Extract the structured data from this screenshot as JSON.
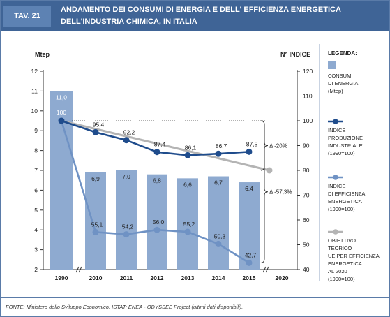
{
  "header": {
    "tav_label": "TAV. 21",
    "title": "ANDAMENTO DEI CONSUMI DI ENERGIA E DELL' EFFICIENZA ENERGETICA DELL'INDUSTRIA CHIMICA, IN ITALIA"
  },
  "legend": {
    "title": "LEGENDA:",
    "items": [
      {
        "label": "CONSUMI DI ENERGIA (Mtep)",
        "lines": [
          "CONSUMI",
          "DI ENERGIA",
          "(Mtep)"
        ],
        "kind": "bar",
        "color": "#8eaad0"
      },
      {
        "label": "INDICE PRODUZIONE INDUSTRIALE (1990=100)",
        "lines": [
          "INDICE",
          "PRODUZIONE",
          "INDUSTRIALE",
          "(1990=100)"
        ],
        "kind": "line",
        "color": "#1f4c8c"
      },
      {
        "label": "INDICE DI EFFICIENZA ENERGETICA (1990=100)",
        "lines": [
          "INDICE",
          "DI EFFICIENZA",
          "ENERGETICA",
          "(1990=100)"
        ],
        "kind": "line",
        "color": "#6f92c4"
      },
      {
        "label": "OBIETTIVO TEORICO UE PER EFFICIENZA ENERGETICA AL 2020 (1990=100)",
        "lines": [
          "OBIETTIVO",
          "TEORICO",
          "UE PER EFFICIENZA",
          "ENERGETICA",
          "AL 2020",
          "(1990=100)"
        ],
        "kind": "line",
        "color": "#b4b4b4"
      }
    ]
  },
  "source": "FONTE: Ministero dello Sviluppo Economico; ISTAT; ENEA - ODYSSEE Project (ultimi dati disponibili).",
  "chart_data": {
    "type": "bar",
    "categories": [
      "1990",
      "2010",
      "2011",
      "2012",
      "2013",
      "2014",
      "2015",
      "2020"
    ],
    "y_left": {
      "label": "Mtep",
      "range": [
        2,
        12
      ],
      "ticks": [
        2,
        3,
        4,
        5,
        6,
        7,
        8,
        9,
        10,
        11,
        12
      ]
    },
    "y_right": {
      "label": "N° INDICE",
      "range": [
        40,
        120
      ],
      "ticks": [
        40,
        50,
        60,
        70,
        80,
        90,
        100,
        110,
        120
      ]
    },
    "bars": {
      "name": "CONSUMI DI ENERGIA (Mtep)",
      "values": [
        11.0,
        6.9,
        7.0,
        6.8,
        6.6,
        6.7,
        6.4,
        null
      ],
      "labels": [
        "11,0",
        "6,9",
        "7,0",
        "6,8",
        "6,6",
        "6,7",
        "6,4",
        ""
      ]
    },
    "series": [
      {
        "name": "INDICE PRODUZIONE INDUSTRIALE (1990=100)",
        "axis": "right",
        "values": [
          100,
          95.4,
          92.2,
          87.4,
          86.1,
          86.7,
          87.5,
          null
        ],
        "labels": [
          "100",
          "95,4",
          "92,2",
          "87,4",
          "86,1",
          "86,7",
          "87,5",
          ""
        ],
        "color": "#1f4c8c"
      },
      {
        "name": "INDICE DI EFFICIENZA ENERGETICA (1990=100)",
        "axis": "right",
        "values": [
          100,
          55.1,
          54.2,
          56.0,
          55.2,
          50.3,
          42.7,
          null
        ],
        "labels": [
          "",
          "55,1",
          "54,2",
          "56,0",
          "55,2",
          "50,3",
          "42,7",
          ""
        ],
        "color": "#6f92c4"
      },
      {
        "name": "OBIETTIVO TEORICO UE PER EFFICIENZA ENERGETICA AL 2020 (1990=100)",
        "axis": "right",
        "values": [
          100,
          null,
          null,
          null,
          null,
          null,
          null,
          80
        ],
        "labels": [
          "",
          "",
          "",
          "",
          "",
          "",
          "",
          ""
        ],
        "color": "#b4b4b4"
      }
    ],
    "annotations": [
      {
        "text": "Δ -20%"
      },
      {
        "text": "Δ -57,3%"
      }
    ]
  }
}
